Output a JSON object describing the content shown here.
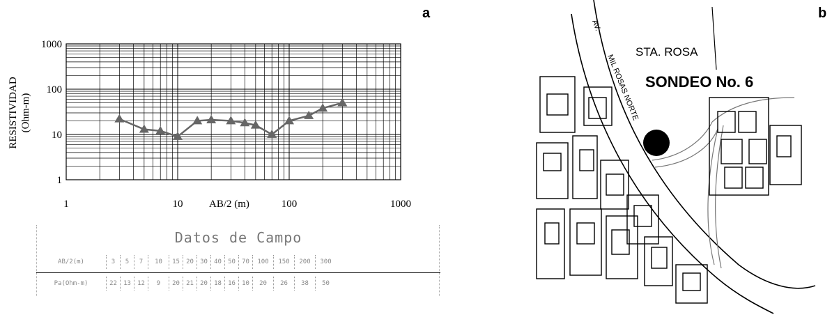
{
  "panel_a": {
    "letter": "a"
  },
  "panel_b": {
    "letter": "b"
  },
  "chart_data": {
    "type": "line",
    "xscale": "log",
    "yscale": "log",
    "xlim": [
      1,
      1000
    ],
    "ylim": [
      1,
      1000
    ],
    "xlabel": "AB/2 (m)",
    "ylabel_line1": "RESISTIVIDAD",
    "ylabel_line2": "(Ohm-m)",
    "x_ticks": [
      "1",
      "10",
      "100",
      "1000"
    ],
    "y_ticks": [
      "1",
      "10",
      "100",
      "1000"
    ],
    "grid": true,
    "marker": "triangle",
    "line_color": "#666666",
    "marker_color": "#666666",
    "x": [
      3,
      5,
      7,
      10,
      15,
      20,
      30,
      40,
      50,
      70,
      100,
      150,
      200,
      300
    ],
    "y": [
      22,
      13,
      12,
      9,
      20,
      21,
      20,
      18,
      16,
      10,
      20,
      26,
      38,
      50
    ]
  },
  "table": {
    "title": "Datos de Campo",
    "row1_head": "AB/2(m)",
    "row1_values": [
      "3",
      "5",
      "7",
      "10",
      "15",
      "20",
      "30",
      "40",
      "50",
      "70",
      "100",
      "150",
      "200",
      "300"
    ],
    "row2_head": "Pa(Ohm-m)",
    "row2_values": [
      "22",
      "13",
      "12",
      "9",
      "20",
      "21",
      "20",
      "18",
      "16",
      "10",
      "20",
      "26",
      "38",
      "50"
    ]
  },
  "map": {
    "place_label": "STA. ROSA",
    "sounding_label": "SONDEO No. 6",
    "street_label_1": "AV.",
    "street_label_2": "MIL ROSAS NORTE"
  }
}
